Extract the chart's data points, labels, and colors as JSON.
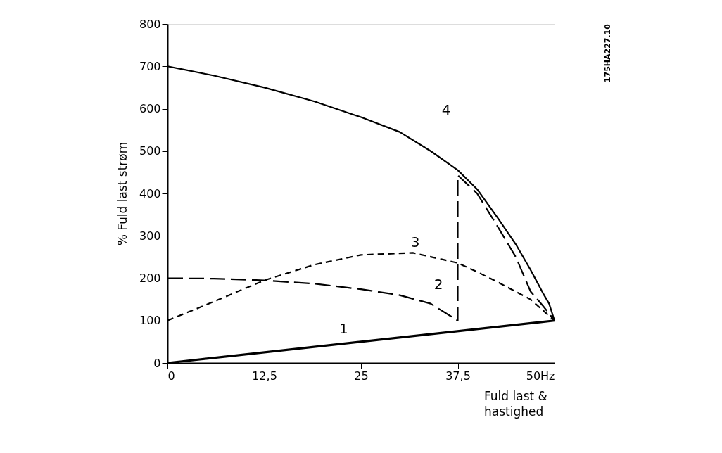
{
  "chart_data": {
    "type": "line",
    "xlabel": "Fuld last & hastighed",
    "ylabel": "% Fuld last strøm",
    "xlim": [
      0,
      50
    ],
    "ylim": [
      0,
      800
    ],
    "xticks": [
      0,
      {
        "value": 12.5,
        "label": "12,5"
      },
      25,
      {
        "value": 37.5,
        "label": "37,5"
      },
      {
        "value": 50,
        "label": "50Hz"
      }
    ],
    "yticks": [
      0,
      100,
      200,
      300,
      400,
      500,
      600,
      700,
      800
    ],
    "grid": false,
    "marker": "none",
    "series": [
      {
        "color": "#000000",
        "line_style": "solid",
        "x": [
          0,
          50
        ],
        "values": [
          0,
          100
        ]
      },
      {
        "color": "#000000",
        "line_style": "dashed",
        "x": [
          0,
          6,
          12.5,
          19,
          25,
          30,
          34,
          37.5,
          37.5,
          40,
          42.75,
          45,
          46.9,
          48.5,
          50
        ],
        "values": [
          200,
          199,
          195,
          187,
          174,
          160,
          140,
          100,
          443,
          400,
          319,
          250,
          169,
          135,
          100
        ]
      },
      {
        "color": "#000000",
        "line_style": "dotted",
        "x": [
          0,
          6,
          12.5,
          19,
          25,
          31.7,
          37.5,
          40,
          42.75,
          46.9,
          50
        ],
        "values": [
          100,
          145,
          195,
          232,
          255,
          260,
          236,
          215,
          190,
          150,
          100
        ]
      },
      {
        "color": "#000000",
        "line_style": "solid",
        "x": [
          0,
          6,
          12.5,
          19,
          25,
          30,
          34,
          37.5,
          40,
          42.75,
          45,
          46.9,
          48.5,
          49.3,
          50
        ],
        "values": [
          700,
          678,
          650,
          617,
          580,
          545,
          500,
          455,
          410,
          340,
          280,
          220,
          165,
          140,
          100
        ]
      }
    ],
    "annotations": [
      "1",
      "2",
      "3",
      "4",
      "175HA227.10"
    ]
  }
}
